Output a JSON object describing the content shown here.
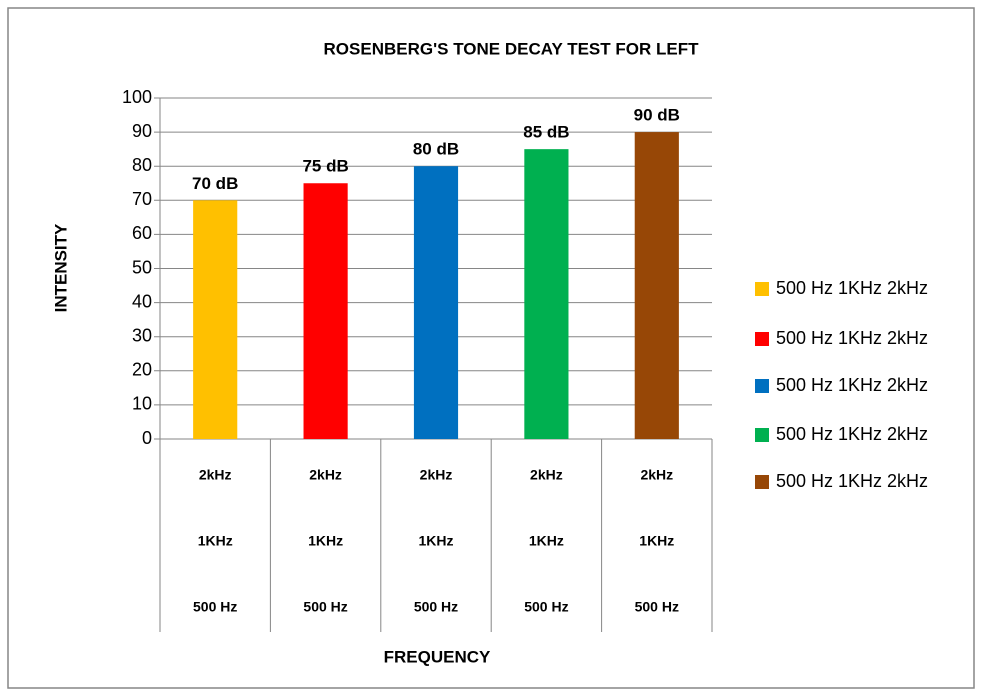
{
  "chart_data": {
    "type": "bar",
    "title": "ROSENBERG'S TONE DECAY TEST FOR LEFT",
    "x_label": "FREQUENCY",
    "y_label": "INTENSITY",
    "categories": [
      [
        "2kHz",
        "1KHz",
        "500 Hz"
      ],
      [
        "2kHz",
        "1KHz",
        "500 Hz"
      ],
      [
        "2kHz",
        "1KHz",
        "500 Hz"
      ],
      [
        "2kHz",
        "1KHz",
        "500 Hz"
      ],
      [
        "2kHz",
        "1KHz",
        "500 Hz"
      ]
    ],
    "values": [
      70,
      75,
      80,
      85,
      90
    ],
    "value_labels": [
      "70 dB",
      "75 dB",
      "80 dB",
      "85 dB",
      "90 dB"
    ],
    "colors": [
      "#ffc000",
      "#ff0000",
      "#0070c0",
      "#00b050",
      "#974706"
    ],
    "legend_labels": [
      "500 Hz 1KHz 2kHz",
      "500 Hz 1KHz 2kHz",
      "500 Hz 1KHz 2kHz",
      "500 Hz 1KHz 2kHz",
      "500 Hz 1KHz 2kHz"
    ],
    "ylim": [
      0,
      100
    ],
    "yticks": [
      0,
      10,
      20,
      30,
      40,
      50,
      60,
      70,
      80,
      90,
      100
    ],
    "grid": true
  }
}
